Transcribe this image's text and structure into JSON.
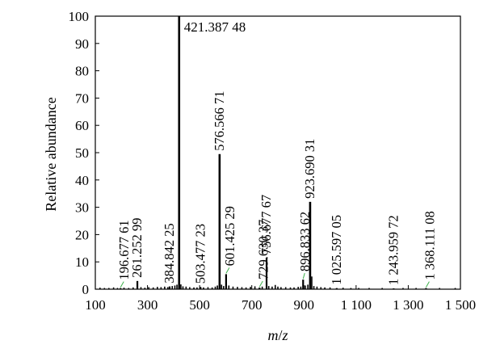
{
  "chart_data": {
    "type": "bar",
    "xlabel_italic_1": "m",
    "xlabel_sep": "/",
    "xlabel_italic_2": "z",
    "ylabel": "Relative abundance",
    "xlim": [
      100,
      1500
    ],
    "ylim": [
      0,
      100
    ],
    "xticks": [
      100,
      300,
      500,
      700,
      900,
      1100,
      1300,
      1500
    ],
    "xtick_labels": [
      "100",
      "300",
      "500",
      "700",
      "900",
      "1 100",
      "1 300",
      "1 500"
    ],
    "yticks": [
      0,
      10,
      20,
      30,
      40,
      50,
      60,
      70,
      80,
      90,
      100
    ],
    "ytick_labels": [
      "0",
      "10",
      "20",
      "30",
      "40",
      "50",
      "60",
      "70",
      "80",
      "90",
      "100"
    ],
    "labeled_peaks": [
      {
        "mz": 196.67761,
        "intensity": 0.4,
        "label": "196.677 61",
        "leader": true
      },
      {
        "mz": 261.25299,
        "intensity": 3.0,
        "label": "261.252 99",
        "leader": false
      },
      {
        "mz": 384.84225,
        "intensity": 1.0,
        "label": "384.842 25",
        "leader": false
      },
      {
        "mz": 421.38748,
        "intensity": 100,
        "label": "421.387 48",
        "leader": false
      },
      {
        "mz": 503.47723,
        "intensity": 0.8,
        "label": "503.477 23",
        "leader": false
      },
      {
        "mz": 576.56671,
        "intensity": 49.5,
        "label": "576.566 71",
        "leader": false
      },
      {
        "mz": 601.42529,
        "intensity": 5.5,
        "label": "601.425 29",
        "leader": true
      },
      {
        "mz": 729.63037,
        "intensity": 0.6,
        "label": "729.630 37",
        "leader": true
      },
      {
        "mz": 756.67767,
        "intensity": 11.5,
        "label": "756.677 67",
        "leader": false
      },
      {
        "mz": 896.83362,
        "intensity": 3.5,
        "label": "896.833 62",
        "leader": true
      },
      {
        "mz": 923.69031,
        "intensity": 32,
        "label": "923.690 31",
        "leader": false
      },
      {
        "mz": 1025.59705,
        "intensity": 0.4,
        "label": "1 025.597 05",
        "leader": false
      },
      {
        "mz": 1243.95972,
        "intensity": 0.3,
        "label": "1 243.959 72",
        "leader": false
      },
      {
        "mz": 1368.11108,
        "intensity": 0.4,
        "label": "1 368.111 08",
        "leader": true
      }
    ],
    "minor_peaks": [
      [
        118,
        0.4
      ],
      [
        135,
        0.3
      ],
      [
        152,
        0.3
      ],
      [
        170,
        0.5
      ],
      [
        185,
        0.3
      ],
      [
        210,
        0.4
      ],
      [
        228,
        0.3
      ],
      [
        245,
        0.5
      ],
      [
        275,
        0.6
      ],
      [
        290,
        0.4
      ],
      [
        305,
        0.6
      ],
      [
        322,
        0.5
      ],
      [
        338,
        0.7
      ],
      [
        352,
        0.6
      ],
      [
        366,
        0.8
      ],
      [
        378,
        0.6
      ],
      [
        395,
        1.0
      ],
      [
        405,
        1.2
      ],
      [
        413,
        1.5
      ],
      [
        428,
        1.6
      ],
      [
        436,
        0.9
      ],
      [
        448,
        0.8
      ],
      [
        462,
        0.6
      ],
      [
        478,
        0.5
      ],
      [
        490,
        0.5
      ],
      [
        515,
        0.5
      ],
      [
        532,
        0.6
      ],
      [
        548,
        0.5
      ],
      [
        560,
        0.8
      ],
      [
        568,
        1.2
      ],
      [
        584,
        1.5
      ],
      [
        592,
        1.0
      ],
      [
        612,
        1.2
      ],
      [
        628,
        0.8
      ],
      [
        645,
        0.7
      ],
      [
        662,
        0.6
      ],
      [
        678,
        0.5
      ],
      [
        695,
        0.7
      ],
      [
        712,
        0.9
      ],
      [
        740,
        0.8
      ],
      [
        765,
        1.0
      ],
      [
        778,
        0.8
      ],
      [
        790,
        1.4
      ],
      [
        800,
        0.8
      ],
      [
        812,
        0.6
      ],
      [
        830,
        0.6
      ],
      [
        848,
        0.5
      ],
      [
        862,
        0.5
      ],
      [
        878,
        0.7
      ],
      [
        888,
        0.8
      ],
      [
        905,
        1.2
      ],
      [
        915,
        1.5
      ],
      [
        930,
        4.5
      ],
      [
        938,
        1.0
      ],
      [
        950,
        0.8
      ],
      [
        965,
        0.6
      ],
      [
        980,
        0.5
      ],
      [
        1000,
        0.5
      ],
      [
        1050,
        0.4
      ],
      [
        1080,
        0.3
      ],
      [
        1110,
        0.3
      ],
      [
        1150,
        0.3
      ],
      [
        1200,
        0.3
      ],
      [
        1280,
        0.3
      ],
      [
        1330,
        0.3
      ],
      [
        1420,
        0.3
      ],
      [
        1480,
        0.3
      ]
    ]
  }
}
